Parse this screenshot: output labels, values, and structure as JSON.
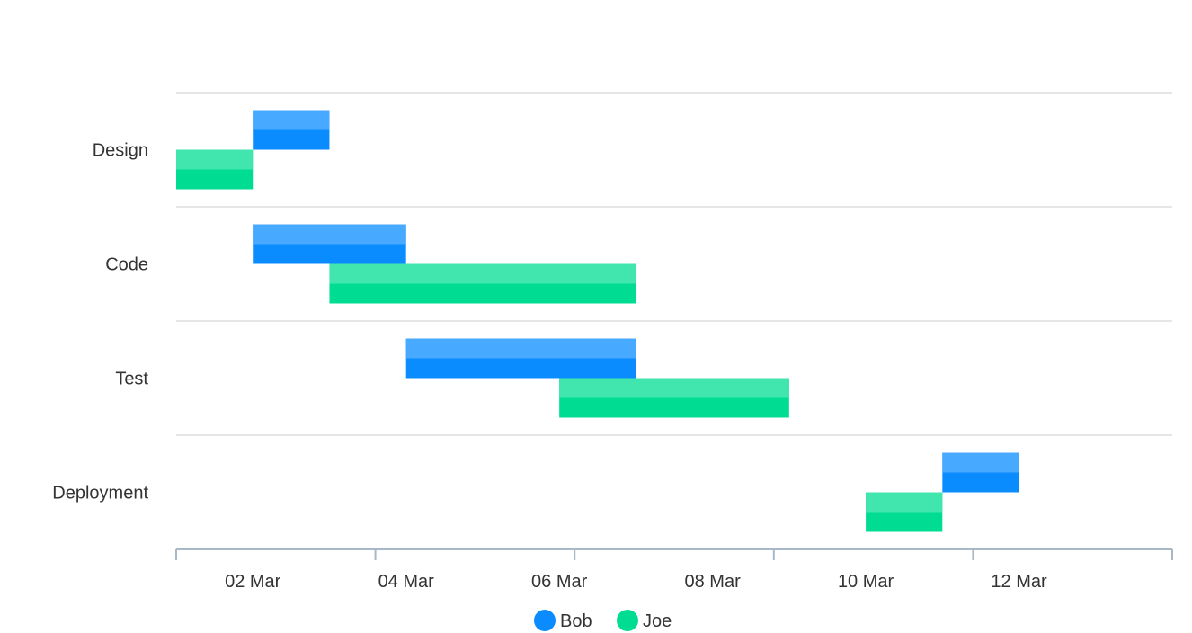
{
  "chart_data": {
    "type": "gantt",
    "title": "",
    "xlabel": "",
    "ylabel": "",
    "categories": [
      "Design",
      "Code",
      "Test",
      "Deployment"
    ],
    "x_tick_labels": [
      "02 Mar",
      "04 Mar",
      "06 Mar",
      "08 Mar",
      "10 Mar",
      "12 Mar"
    ],
    "x_ticks": [
      "2014-03-02",
      "2014-03-04",
      "2014-03-06",
      "2014-03-08",
      "2014-03-10",
      "2014-03-12"
    ],
    "xlim": [
      "2014-03-01",
      "2014-03-14"
    ],
    "legend_position": "bottom-center",
    "grid": true,
    "series": [
      {
        "name": "Bob",
        "color": "#0a8cff",
        "tasks": [
          {
            "category": "Design",
            "start": "2014-03-02",
            "end": "2014-03-03"
          },
          {
            "category": "Code",
            "start": "2014-03-02",
            "end": "2014-03-04"
          },
          {
            "category": "Test",
            "start": "2014-03-04",
            "end": "2014-03-07"
          },
          {
            "category": "Deployment",
            "start": "2014-03-11",
            "end": "2014-03-12"
          }
        ]
      },
      {
        "name": "Joe",
        "color": "#00dd92",
        "tasks": [
          {
            "category": "Design",
            "start": "2014-03-01",
            "end": "2014-03-02"
          },
          {
            "category": "Code",
            "start": "2014-03-03",
            "end": "2014-03-07"
          },
          {
            "category": "Test",
            "start": "2014-03-06",
            "end": "2014-03-09"
          },
          {
            "category": "Deployment",
            "start": "2014-03-10",
            "end": "2014-03-11"
          }
        ]
      }
    ]
  }
}
